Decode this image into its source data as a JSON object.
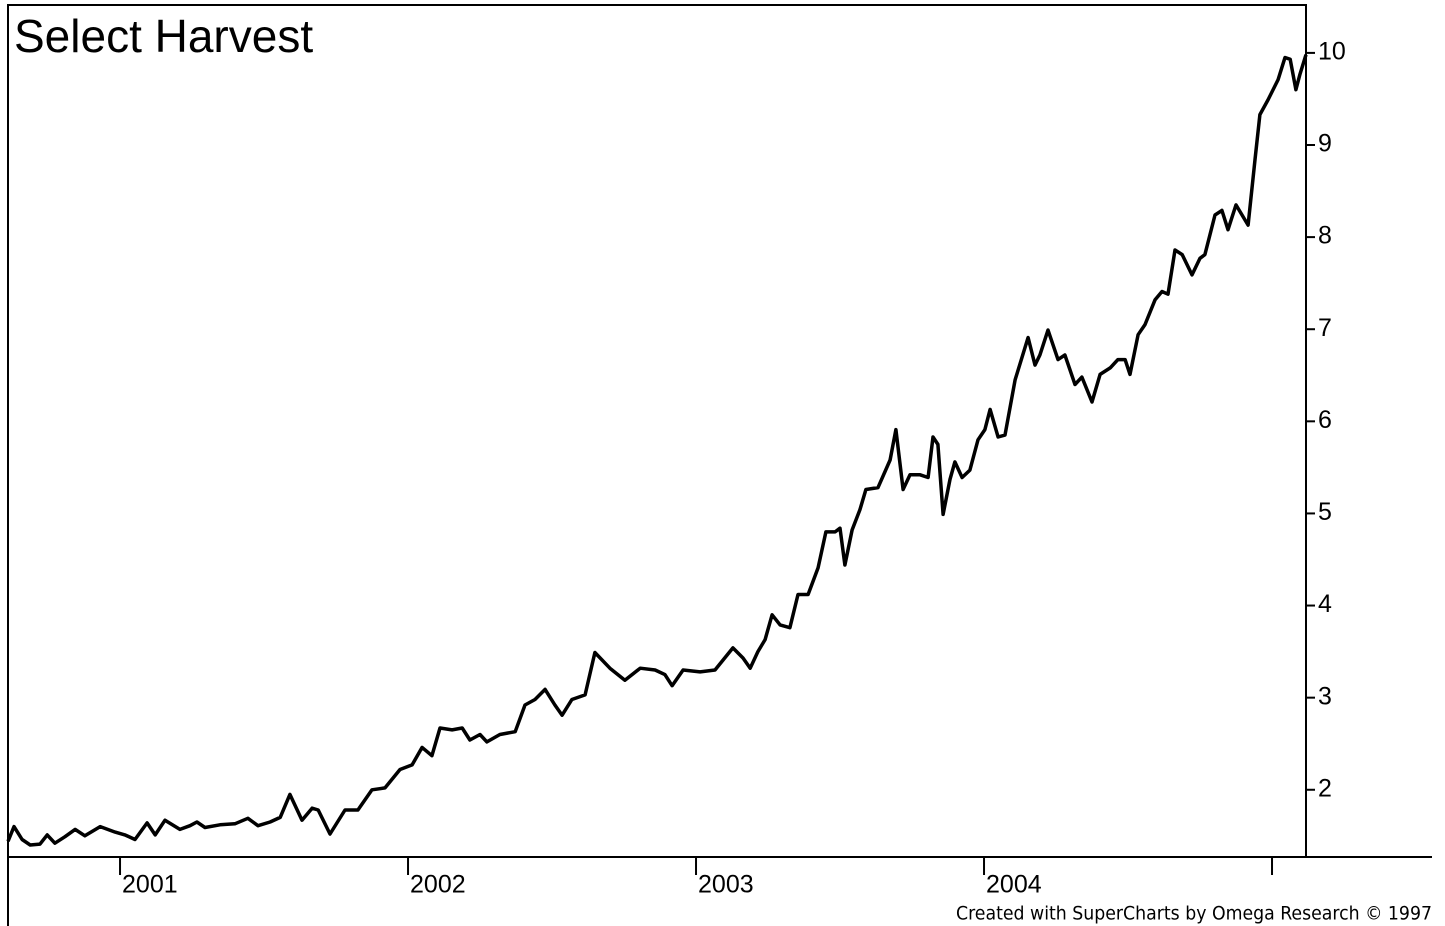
{
  "chart_data": {
    "type": "line",
    "title": "Select Harvest",
    "credit": "Created with SuperCharts by Omega Research © 1997",
    "color": "#000000",
    "x": [
      2000.611,
      2000.632,
      2000.66,
      2000.688,
      2000.722,
      2000.747,
      2000.774,
      2000.809,
      2000.844,
      2000.878,
      2000.931,
      2000.983,
      2001.017,
      2001.052,
      2001.094,
      2001.122,
      2001.156,
      2001.208,
      2001.243,
      2001.267,
      2001.295,
      2001.347,
      2001.399,
      2001.444,
      2001.479,
      2001.521,
      2001.556,
      2001.59,
      2001.632,
      2001.667,
      2001.688,
      2001.729,
      2001.781,
      2001.826,
      2001.875,
      2001.92,
      2001.972,
      2002.014,
      2002.049,
      2002.083,
      2002.111,
      2002.153,
      2002.188,
      2002.215,
      2002.25,
      2002.274,
      2002.319,
      2002.372,
      2002.406,
      2002.441,
      2002.476,
      2002.51,
      2002.535,
      2002.569,
      2002.615,
      2002.649,
      2002.701,
      2002.753,
      2002.806,
      2002.858,
      2002.892,
      2002.917,
      2002.955,
      2003.014,
      2003.066,
      2003.128,
      2003.163,
      2003.188,
      2003.215,
      2003.24,
      2003.264,
      2003.292,
      2003.326,
      2003.354,
      2003.389,
      2003.424,
      2003.451,
      2003.483,
      2003.5,
      2003.517,
      2003.542,
      2003.569,
      2003.59,
      2003.632,
      2003.674,
      2003.694,
      2003.719,
      2003.743,
      2003.778,
      2003.806,
      2003.823,
      2003.84,
      2003.858,
      2003.882,
      2003.899,
      2003.924,
      2003.951,
      2003.979,
      2004.003,
      2004.021,
      2004.049,
      2004.073,
      2004.108,
      2004.153,
      2004.177,
      2004.194,
      2004.222,
      2004.257,
      2004.281,
      2004.316,
      2004.34,
      2004.375,
      2004.403,
      2004.438,
      2004.465,
      2004.49,
      2004.507,
      2004.535,
      2004.559,
      2004.594,
      2004.618,
      2004.639,
      2004.663,
      2004.688,
      2004.722,
      2004.75,
      2004.767,
      2004.802,
      2004.826,
      2004.847,
      2004.875,
      2004.917,
      2004.941,
      2004.958,
      2004.986,
      2005.021,
      2005.045,
      2005.063,
      2005.083,
      2005.097,
      2005.118
    ],
    "values": [
      1.44,
      1.6,
      1.46,
      1.4,
      1.41,
      1.51,
      1.42,
      1.49,
      1.57,
      1.5,
      1.6,
      1.54,
      1.51,
      1.46,
      1.64,
      1.51,
      1.67,
      1.57,
      1.61,
      1.65,
      1.59,
      1.62,
      1.63,
      1.69,
      1.61,
      1.65,
      1.7,
      1.95,
      1.67,
      1.8,
      1.78,
      1.52,
      1.78,
      1.78,
      2.0,
      2.02,
      2.22,
      2.27,
      2.46,
      2.37,
      2.67,
      2.65,
      2.67,
      2.54,
      2.6,
      2.52,
      2.6,
      2.63,
      2.92,
      2.98,
      3.09,
      2.92,
      2.81,
      2.98,
      3.03,
      3.49,
      3.32,
      3.19,
      3.32,
      3.3,
      3.25,
      3.13,
      3.3,
      3.28,
      3.3,
      3.54,
      3.43,
      3.32,
      3.5,
      3.63,
      3.9,
      3.79,
      3.76,
      4.12,
      4.12,
      4.41,
      4.8,
      4.8,
      4.84,
      4.44,
      4.82,
      5.04,
      5.26,
      5.28,
      5.58,
      5.91,
      5.26,
      5.42,
      5.42,
      5.39,
      5.83,
      5.75,
      4.99,
      5.37,
      5.56,
      5.39,
      5.47,
      5.8,
      5.91,
      6.13,
      5.83,
      5.85,
      6.45,
      6.91,
      6.61,
      6.72,
      6.99,
      6.67,
      6.72,
      6.4,
      6.48,
      6.21,
      6.51,
      6.58,
      6.67,
      6.67,
      6.51,
      6.94,
      7.05,
      7.32,
      7.41,
      7.38,
      7.86,
      7.81,
      7.59,
      7.77,
      7.81,
      8.24,
      8.29,
      8.08,
      8.35,
      8.13,
      8.84,
      9.33,
      9.49,
      9.71,
      9.95,
      9.93,
      9.6,
      9.77,
      9.98
    ],
    "xlim": [
      2000.611,
      2005.118
    ],
    "xticks": [
      2001,
      2002,
      2003,
      2004,
      {
        "value": 2005,
        "label": null
      }
    ],
    "ylim": [
      1.27,
      10.52
    ],
    "yticks": [
      2,
      3,
      4,
      5,
      6,
      7,
      8,
      9,
      10
    ]
  }
}
